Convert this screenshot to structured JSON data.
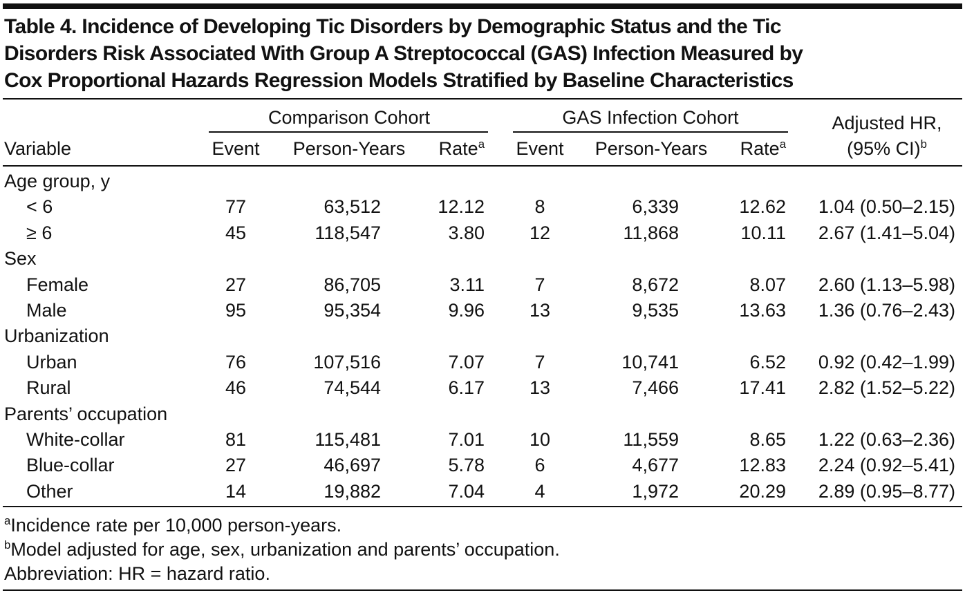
{
  "title": [
    "Table 4. Incidence of Developing Tic Disorders by Demographic Status and the Tic",
    "Disorders Risk Associated With Group A Streptococcal (GAS) Infection Measured by",
    "Cox Proportional Hazards Regression Models Stratified by Baseline Characteristics"
  ],
  "table": {
    "groups": [
      "Comparison Cohort",
      "GAS Infection Cohort"
    ],
    "columns": [
      {
        "text": "Variable"
      },
      {
        "text": "Event"
      },
      {
        "text": "Person-Years"
      },
      {
        "text": "Rate",
        "sup": "a"
      },
      {
        "text": "Event"
      },
      {
        "text": "Person-Years"
      },
      {
        "text": "Rate",
        "sup": "a"
      },
      {
        "line1": "Adjusted HR,",
        "text": "(95% CI)",
        "sup": "b"
      }
    ],
    "sections": [
      {
        "label": "Age group, y",
        "rows": [
          {
            "label": "< 6",
            "cells": [
              "77",
              "63,512",
              "12.12",
              "8",
              "6,339",
              "12.62",
              "1.04 (0.50–2.15)"
            ]
          },
          {
            "label": "≥ 6",
            "cells": [
              "45",
              "118,547",
              "3.80",
              "12",
              "11,868",
              "10.11",
              "2.67 (1.41–5.04)"
            ]
          }
        ]
      },
      {
        "label": "Sex",
        "rows": [
          {
            "label": "Female",
            "cells": [
              "27",
              "86,705",
              "3.11",
              "7",
              "8,672",
              "8.07",
              "2.60 (1.13–5.98)"
            ]
          },
          {
            "label": "Male",
            "cells": [
              "95",
              "95,354",
              "9.96",
              "13",
              "9,535",
              "13.63",
              "1.36 (0.76–2.43)"
            ]
          }
        ]
      },
      {
        "label": "Urbanization",
        "rows": [
          {
            "label": "Urban",
            "cells": [
              "76",
              "107,516",
              "7.07",
              "7",
              "10,741",
              "6.52",
              "0.92 (0.42–1.99)"
            ]
          },
          {
            "label": "Rural",
            "cells": [
              "46",
              "74,544",
              "6.17",
              "13",
              "7,466",
              "17.41",
              "2.82 (1.52–5.22)"
            ]
          }
        ]
      },
      {
        "label": "Parents’ occupation",
        "rows": [
          {
            "label": "White-collar",
            "cells": [
              "81",
              "115,481",
              "7.01",
              "10",
              "11,559",
              "8.65",
              "1.22 (0.63–2.36)"
            ]
          },
          {
            "label": "Blue-collar",
            "cells": [
              "27",
              "46,697",
              "5.78",
              "6",
              "4,677",
              "12.83",
              "2.24 (0.92–5.41)"
            ]
          },
          {
            "label": "Other",
            "cells": [
              "14",
              "19,882",
              "7.04",
              "4",
              "1,972",
              "20.29",
              "2.89 (0.95–8.77)"
            ]
          }
        ]
      }
    ]
  },
  "footnotes": [
    {
      "sup": "a",
      "text": "Incidence rate per 10,000 person-years."
    },
    {
      "sup": "b",
      "text": "Model adjusted for age, sex, urbanization and parents’ occupation."
    },
    {
      "text": "Abbreviation: HR = hazard ratio."
    }
  ]
}
